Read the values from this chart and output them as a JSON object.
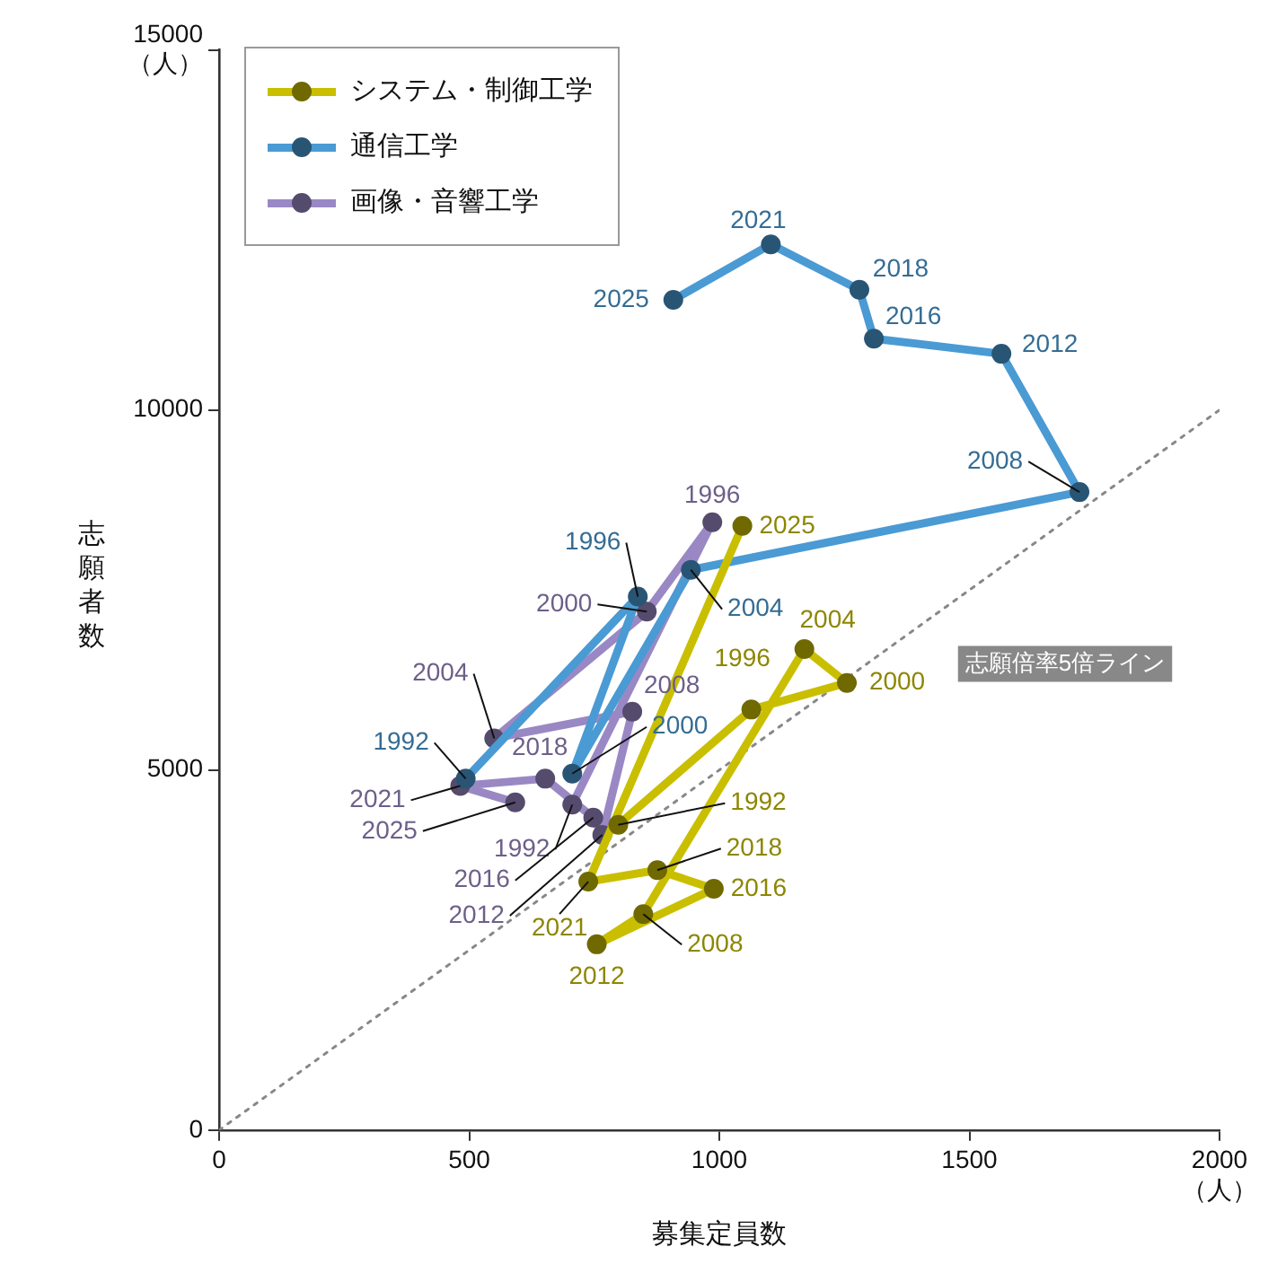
{
  "chart_data": {
    "type": "line",
    "xlabel": "募集定員数",
    "ylabel": "志願者数",
    "xlim": [
      0,
      2000
    ],
    "ylim": [
      0,
      15000
    ],
    "xticks": [
      0,
      500,
      1000,
      1500,
      {
        "value": 2000,
        "label": "2000\n（人）"
      }
    ],
    "yticks": [
      0,
      5000,
      10000,
      {
        "value": 15000,
        "label": "15000\n（人）"
      }
    ],
    "grid": false,
    "legend": "top left",
    "marker": "circle",
    "line_style": "solid",
    "annotations": [
      "志願倍率5倍ライン",
      {
        "text": "1992",
        "x": 493,
        "y": 4880
      },
      {
        "text": "1996",
        "x": 837,
        "y": 7410
      },
      {
        "text": "2000",
        "x": 706,
        "y": 4950
      },
      {
        "text": "2004",
        "x": 943,
        "y": 7780
      },
      {
        "text": "2008",
        "x": 1720,
        "y": 8860
      },
      {
        "text": "2012",
        "x": 1564,
        "y": 10780
      },
      {
        "text": "2016",
        "x": 1309,
        "y": 10990
      },
      {
        "text": "2018",
        "x": 1280,
        "y": 11670
      },
      {
        "text": "2021",
        "x": 1103,
        "y": 12300
      },
      {
        "text": "2025",
        "x": 908,
        "y": 11530
      },
      {
        "text": "1992",
        "x": 706,
        "y": 4520
      },
      {
        "text": "1996",
        "x": 986,
        "y": 8440
      },
      {
        "text": "2000",
        "x": 855,
        "y": 7200
      },
      {
        "text": "2004",
        "x": 550,
        "y": 5440
      },
      {
        "text": "2008",
        "x": 826,
        "y": 5810
      },
      {
        "text": "2012",
        "x": 766,
        "y": 4100
      },
      {
        "text": "2016",
        "x": 748,
        "y": 4340
      },
      {
        "text": "2018",
        "x": 652,
        "y": 4880
      },
      {
        "text": "2021",
        "x": 482,
        "y": 4780
      },
      {
        "text": "2025",
        "x": 592,
        "y": 4550
      },
      {
        "text": "1992",
        "x": 798,
        "y": 4240
      },
      {
        "text": "1996",
        "x": 1064,
        "y": 5840
      },
      {
        "text": "2000",
        "x": 1255,
        "y": 6210
      },
      {
        "text": "2004",
        "x": 1170,
        "y": 6680
      },
      {
        "text": "2008",
        "x": 848,
        "y": 3000
      },
      {
        "text": "2012",
        "x": 755,
        "y": 2580
      },
      {
        "text": "2016",
        "x": 989,
        "y": 3350
      },
      {
        "text": "2018",
        "x": 876,
        "y": 3610
      },
      {
        "text": "2021",
        "x": 738,
        "y": 3450
      },
      {
        "text": "2025",
        "x": 1046,
        "y": 8390
      }
    ],
    "series": [
      {
        "name": "システム・制御工学",
        "color": "#c9bf00",
        "x": [
          798,
          1064,
          1255,
          1170,
          848,
          755,
          989,
          876,
          738,
          1046
        ],
        "values": [
          4240,
          5840,
          6210,
          6680,
          3000,
          2580,
          3350,
          3610,
          3450,
          8390
        ]
      },
      {
        "name": "通信工学",
        "color": "#4a9ad4",
        "x": [
          493,
          837,
          706,
          943,
          1720,
          1564,
          1309,
          1280,
          1103,
          908
        ],
        "values": [
          4880,
          7410,
          4950,
          7780,
          8860,
          10780,
          10990,
          11670,
          12300,
          11530
        ]
      },
      {
        "name": "画像・音響工学",
        "color": "#9a88c4",
        "x": [
          706,
          986,
          855,
          550,
          826,
          766,
          748,
          652,
          482,
          592
        ],
        "values": [
          4520,
          8440,
          7200,
          5440,
          5810,
          4100,
          4340,
          4880,
          4780,
          4550
        ]
      },
      {
        "type": "line",
        "color": "#888888",
        "x": [
          0,
          2000
        ],
        "values": [
          0,
          10000
        ],
        "line_style": "dotted",
        "marker": "none"
      }
    ]
  }
}
